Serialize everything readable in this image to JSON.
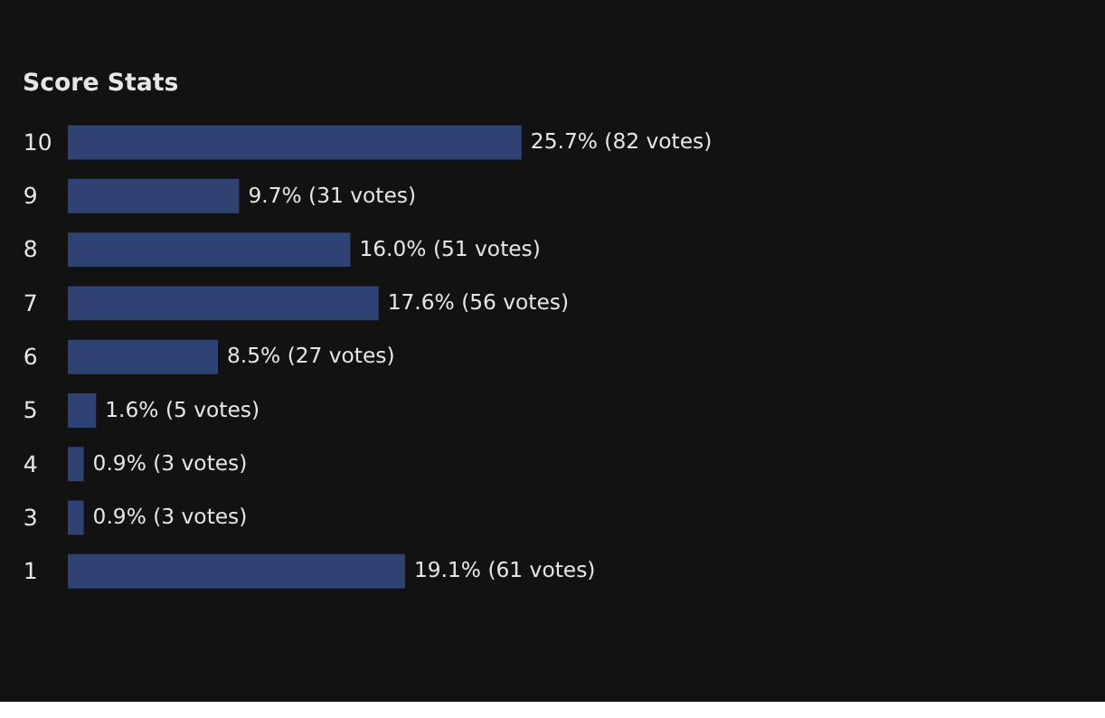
{
  "chart_data": {
    "type": "bar",
    "orientation": "horizontal",
    "title": "Score Stats",
    "categories": [
      "10",
      "9",
      "8",
      "7",
      "6",
      "5",
      "4",
      "3",
      "1"
    ],
    "values": [
      25.7,
      9.7,
      16.0,
      17.6,
      8.5,
      1.6,
      0.9,
      0.9,
      19.1
    ],
    "color": "#2e4374",
    "value_labels": [
      "25.7% (82 votes)",
      "9.7% (31 votes)",
      "16.0% (51 votes)",
      "17.6% (56 votes)",
      "8.5% (27 votes)",
      "1.6% (5 votes)",
      "0.9% (3 votes)",
      "0.9% (3 votes)",
      "19.1% (61 votes)"
    ],
    "grid": false
  }
}
